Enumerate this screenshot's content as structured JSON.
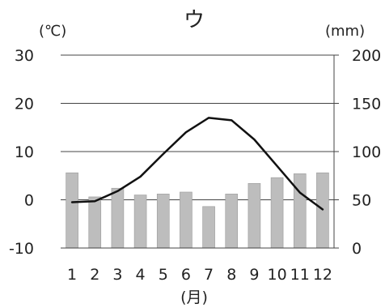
{
  "chart_data": {
    "type": "bar+line",
    "title": "ウ",
    "left_unit": "(℃)",
    "right_unit": "(mm)",
    "x_unit": "(月)",
    "categories": [
      "1",
      "2",
      "3",
      "4",
      "5",
      "6",
      "7",
      "8",
      "9",
      "10",
      "11",
      "12"
    ],
    "left_axis": {
      "ylim": [
        -10,
        30
      ],
      "ticks": [
        "-10",
        "0",
        "10",
        "20",
        "30"
      ],
      "tick_values": [
        -10,
        0,
        10,
        20,
        30
      ]
    },
    "right_axis": {
      "ylim": [
        0,
        200
      ],
      "ticks": [
        "0",
        "50",
        "100",
        "150",
        "200"
      ],
      "tick_values": [
        0,
        50,
        100,
        150,
        200
      ]
    },
    "series": [
      {
        "type": "line",
        "axis": "left",
        "values": [
          -0.5,
          -0.3,
          1.8,
          4.8,
          9.5,
          14.0,
          17.0,
          16.5,
          12.5,
          7.0,
          1.5,
          -2.0
        ]
      },
      {
        "type": "bar",
        "axis": "right",
        "values": [
          78,
          53,
          62,
          55,
          56,
          58,
          43,
          56,
          67,
          73,
          77,
          78
        ]
      }
    ],
    "grid": true,
    "colors": {
      "bar": "#bdbdbd",
      "line": "#111111",
      "grid": "#444444"
    }
  }
}
